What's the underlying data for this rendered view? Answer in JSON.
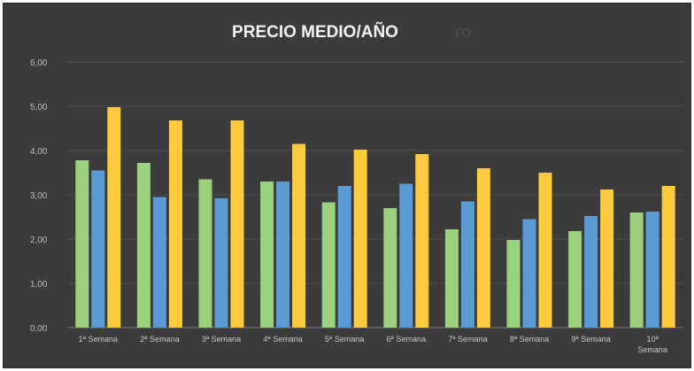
{
  "chart_data": {
    "type": "bar",
    "title": "PRECIO MEDIO/AÑO",
    "title_ghost": "TO",
    "categories": [
      "1ª Semana",
      "2ª Semana",
      "3ª Semana",
      "4ª Semana",
      "5ª Semana",
      "6ª Semana",
      "7ª Semana",
      "8ª Semana",
      "9ª Semana",
      "10ª Semana"
    ],
    "category_labels": [
      "1ª Semana",
      "2ª Semana",
      "3ª Semana",
      "4ª Semana",
      "5ª Semana",
      "6ª Semana",
      "7ª Semana",
      "8ª Semana",
      "9ª Semana",
      "10ª\nSemana"
    ],
    "series": [
      {
        "color": "#9bd07c",
        "values": [
          3.78,
          3.72,
          3.35,
          3.3,
          2.83,
          2.7,
          2.22,
          1.98,
          2.18,
          2.6
        ]
      },
      {
        "color": "#5b9bd5",
        "values": [
          3.55,
          2.95,
          2.92,
          3.3,
          3.2,
          3.25,
          2.85,
          2.45,
          2.52,
          2.62
        ]
      },
      {
        "color": "#ffcb3d",
        "values": [
          4.98,
          4.68,
          4.68,
          4.15,
          4.02,
          3.92,
          3.6,
          3.5,
          3.12,
          3.2
        ]
      }
    ],
    "yticks": [
      "0,00",
      "1,00",
      "2,00",
      "3,00",
      "4,00",
      "5,00",
      "6,00"
    ],
    "ylim": [
      0,
      6
    ],
    "grid": true,
    "xlabel": "",
    "ylabel": ""
  },
  "colors": {
    "background": "#3b3b3b",
    "gridline": "#4e4e4e",
    "text": "#f2f2f2"
  }
}
